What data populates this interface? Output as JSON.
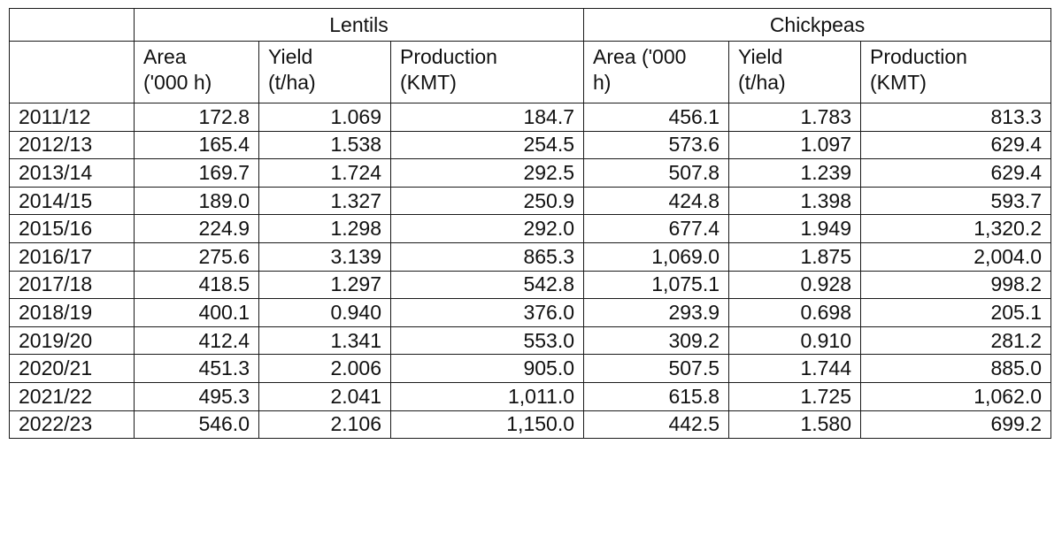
{
  "table": {
    "groups": [
      "Lentils",
      "Chickpeas"
    ],
    "subheaders": [
      [
        "Area",
        "('000 h)"
      ],
      [
        "Yield",
        "(t/ha)"
      ],
      [
        "Production",
        "(KMT)"
      ],
      [
        "Area ('000",
        "h)"
      ],
      [
        "Yield",
        "(t/ha)"
      ],
      [
        "Production",
        "(KMT)"
      ]
    ],
    "rows": [
      [
        "2011/12",
        "172.8",
        "1.069",
        "184.7",
        "456.1",
        "1.783",
        "813.3"
      ],
      [
        "2012/13",
        "165.4",
        "1.538",
        "254.5",
        "573.6",
        "1.097",
        "629.4"
      ],
      [
        "2013/14",
        "169.7",
        "1.724",
        "292.5",
        "507.8",
        "1.239",
        "629.4"
      ],
      [
        "2014/15",
        "189.0",
        "1.327",
        "250.9",
        "424.8",
        "1.398",
        "593.7"
      ],
      [
        "2015/16",
        "224.9",
        "1.298",
        "292.0",
        "677.4",
        "1.949",
        "1,320.2"
      ],
      [
        "2016/17",
        "275.6",
        "3.139",
        "865.3",
        "1,069.0",
        "1.875",
        "2,004.0"
      ],
      [
        "2017/18",
        "418.5",
        "1.297",
        "542.8",
        "1,075.1",
        "0.928",
        "998.2"
      ],
      [
        "2018/19",
        "400.1",
        "0.940",
        "376.0",
        "293.9",
        "0.698",
        "205.1"
      ],
      [
        "2019/20",
        "412.4",
        "1.341",
        "553.0",
        "309.2",
        "0.910",
        "281.2"
      ],
      [
        "2020/21",
        "451.3",
        "2.006",
        "905.0",
        "507.5",
        "1.744",
        "885.0"
      ],
      [
        "2021/22",
        "495.3",
        "2.041",
        "1,011.0",
        "615.8",
        "1.725",
        "1,062.0"
      ],
      [
        "2022/23",
        "546.0",
        "2.106",
        "1,150.0",
        "442.5",
        "1.580",
        "699.2"
      ]
    ]
  }
}
